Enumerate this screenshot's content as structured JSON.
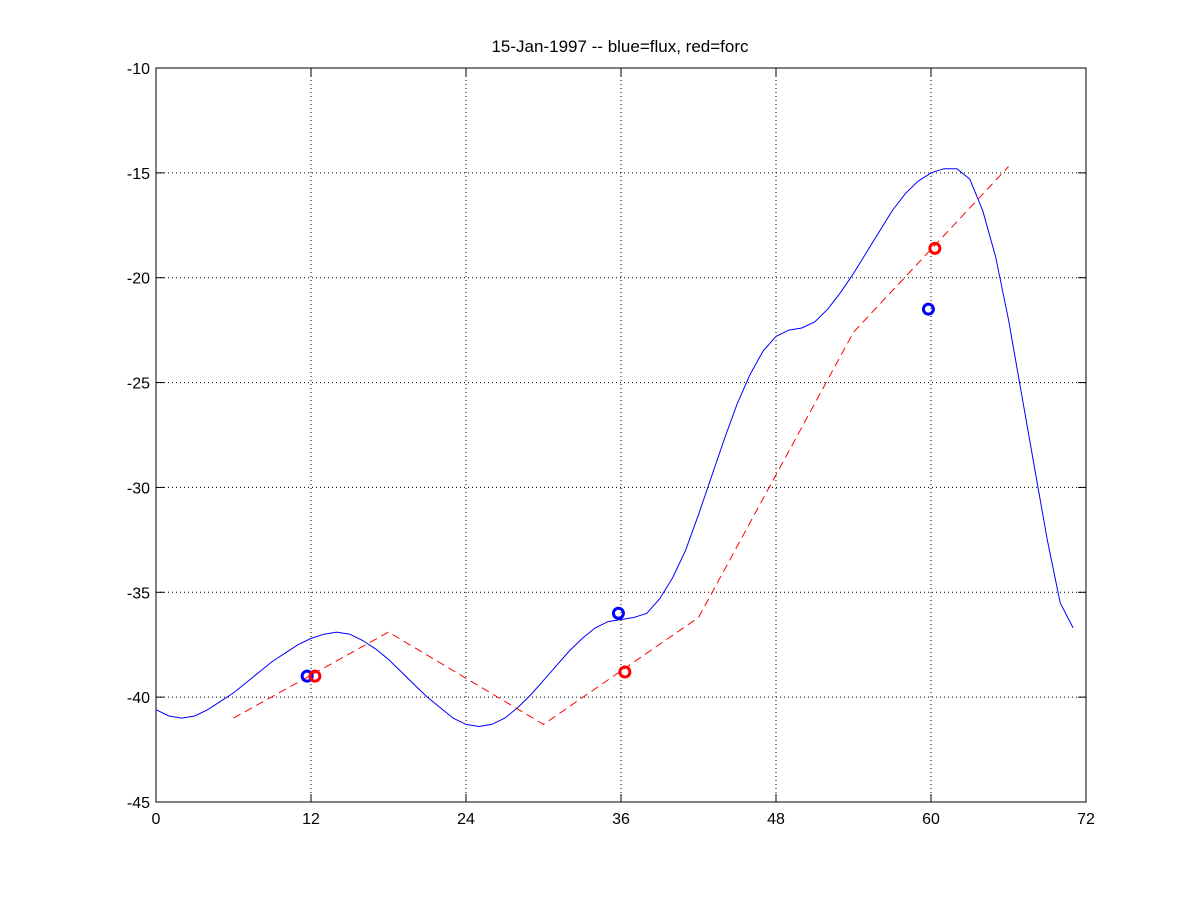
{
  "chart_data": {
    "type": "line",
    "title": "15-Jan-1997 -- blue=flux, red=forc",
    "xlabel": "",
    "ylabel": "",
    "xlim": [
      0,
      72
    ],
    "ylim": [
      -45,
      -10
    ],
    "xticks": [
      0,
      12,
      24,
      36,
      48,
      60,
      72
    ],
    "yticks": [
      -45,
      -40,
      -35,
      -30,
      -25,
      -20,
      -15,
      -10
    ],
    "grid": true,
    "series": [
      {
        "color": "#0000ff",
        "style": "solid",
        "x": [
          0,
          1,
          2,
          3,
          4,
          5,
          6,
          7,
          8,
          9,
          10,
          11,
          12,
          13,
          14,
          15,
          16,
          17,
          18,
          19,
          20,
          21,
          22,
          23,
          24,
          25,
          26,
          27,
          28,
          29,
          30,
          31,
          32,
          33,
          34,
          35,
          36,
          37,
          38,
          39,
          40,
          41,
          42,
          43,
          44,
          45,
          46,
          47,
          48,
          49,
          50,
          51,
          52,
          53,
          54,
          55,
          56,
          57,
          58,
          59,
          60,
          61,
          62,
          63,
          64,
          65,
          66,
          67,
          68,
          69,
          70,
          71
        ],
        "y": [
          -40.6,
          -40.9,
          -41.0,
          -40.9,
          -40.6,
          -40.2,
          -39.8,
          -39.3,
          -38.8,
          -38.3,
          -37.9,
          -37.5,
          -37.2,
          -37.0,
          -36.9,
          -37.0,
          -37.3,
          -37.7,
          -38.2,
          -38.8,
          -39.4,
          -40.0,
          -40.5,
          -41.0,
          -41.3,
          -41.4,
          -41.3,
          -41.0,
          -40.5,
          -39.9,
          -39.2,
          -38.5,
          -37.8,
          -37.2,
          -36.7,
          -36.4,
          -36.3,
          -36.2,
          -36.0,
          -35.3,
          -34.3,
          -33.0,
          -31.3,
          -29.5,
          -27.7,
          -26.0,
          -24.6,
          -23.5,
          -22.8,
          -22.5,
          -22.4,
          -22.1,
          -21.5,
          -20.7,
          -19.8,
          -18.8,
          -17.8,
          -16.8,
          -16.0,
          -15.4,
          -15.0,
          -14.8,
          -14.8,
          -15.3,
          -16.8,
          -19.0,
          -22.0,
          -25.5,
          -29.0,
          -32.5,
          -35.5,
          -36.7
        ]
      },
      {
        "color": "#ff0000",
        "style": "dashed",
        "x": [
          6,
          18,
          30,
          42,
          54,
          66
        ],
        "y": [
          -41.0,
          -36.9,
          -41.3,
          -36.2,
          -22.6,
          -14.7
        ]
      }
    ],
    "markers": [
      {
        "color": "#0000ff",
        "x": 11.7,
        "y": -39.0
      },
      {
        "color": "#0000ff",
        "x": 35.8,
        "y": -36.0
      },
      {
        "color": "#0000ff",
        "x": 59.8,
        "y": -21.5
      },
      {
        "color": "#ff0000",
        "x": 12.3,
        "y": -39.0
      },
      {
        "color": "#ff0000",
        "x": 36.3,
        "y": -38.8
      },
      {
        "color": "#ff0000",
        "x": 60.3,
        "y": -18.6
      }
    ]
  }
}
